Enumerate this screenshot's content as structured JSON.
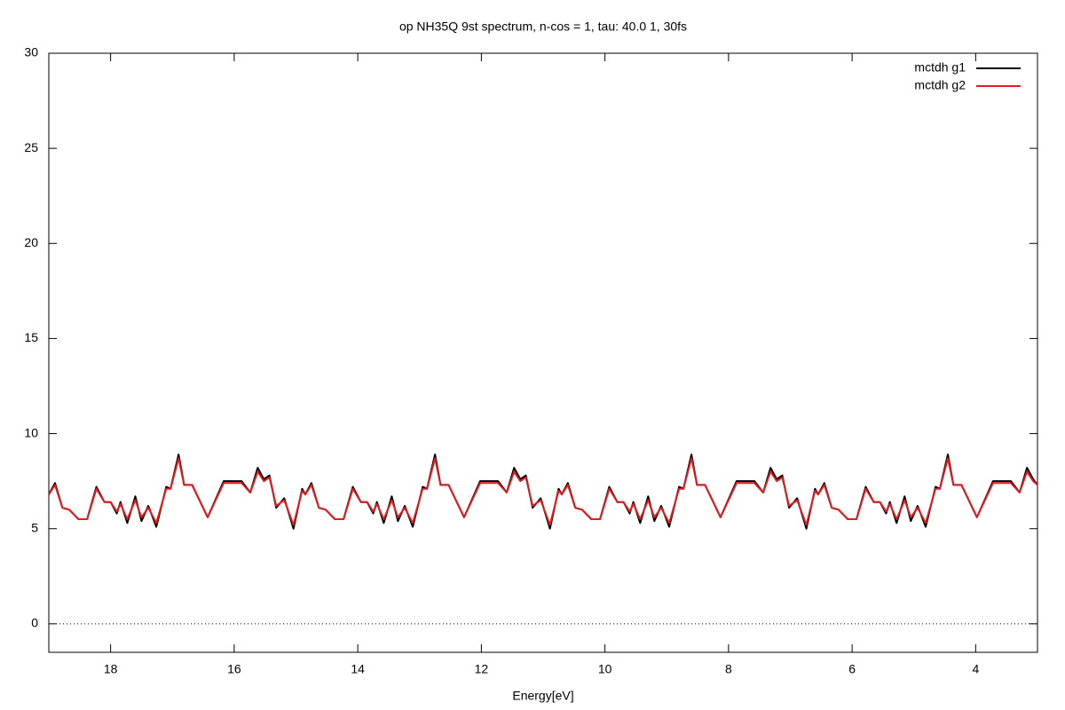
{
  "chart_data": {
    "type": "line",
    "title": "op NH35Q 9st spectrum, n-cos = 1, tau: 40.0 1, 30fs",
    "x_label": "Energy[eV]",
    "xlim": [
      19,
      3
    ],
    "ylim": [
      -1.5,
      30
    ],
    "xticks": [
      18,
      16,
      14,
      12,
      10,
      8,
      6,
      4
    ],
    "yticks": [
      0,
      5,
      10,
      15,
      20,
      25,
      30
    ],
    "zeroaxis": true,
    "legend": "top-right",
    "x": [
      19,
      18.9,
      18.78,
      18.67,
      18.52,
      18.38,
      18.23,
      18.1,
      18,
      17.9,
      17.84,
      17.73,
      17.6,
      17.5,
      17.39,
      17.26,
      17.1,
      17.03,
      16.9,
      16.81,
      16.68,
      16.43,
      16.17,
      15.88,
      15.74,
      15.62,
      15.52,
      15.43,
      15.32,
      15.19,
      15.04,
      14.9,
      14.85,
      14.75,
      14.63,
      14.52,
      14.37,
      14.23,
      14.08,
      13.95,
      13.85,
      13.75,
      13.69,
      13.58,
      13.45,
      13.35,
      13.24,
      13.11,
      12.95,
      12.88,
      12.75,
      12.66,
      12.53,
      12.28,
      12.02,
      11.73,
      11.59,
      11.47,
      11.37,
      11.28,
      11.17,
      11.04,
      10.89,
      10.75,
      10.7,
      10.6,
      10.48,
      10.37,
      10.22,
      10.08,
      9.93,
      9.8,
      9.7,
      9.6,
      9.54,
      9.43,
      9.3,
      9.2,
      9.09,
      8.96,
      8.8,
      8.73,
      8.6,
      8.51,
      8.38,
      8.13,
      7.87,
      7.58,
      7.44,
      7.32,
      7.22,
      7.13,
      7.02,
      6.89,
      6.74,
      6.6,
      6.55,
      6.45,
      6.33,
      6.22,
      6.07,
      5.93,
      5.78,
      5.65,
      5.55,
      5.45,
      5.39,
      5.28,
      5.15,
      5.05,
      4.94,
      4.81,
      4.65,
      4.58,
      4.45,
      4.36,
      4.23,
      3.98,
      3.72,
      3.43,
      3.29,
      3.17,
      3.07,
      3
    ],
    "series": [
      {
        "name": "mctdh g1",
        "color": "#000000",
        "values": [
          6.8,
          7.4,
          6.1,
          6.0,
          5.5,
          5.5,
          7.2,
          6.4,
          6.4,
          5.8,
          6.4,
          5.3,
          6.7,
          5.4,
          6.2,
          5.1,
          7.2,
          7.1,
          8.9,
          7.3,
          7.3,
          5.6,
          7.5,
          7.5,
          6.9,
          8.2,
          7.6,
          7.8,
          6.1,
          6.6,
          5.0,
          7.1,
          6.8,
          7.4,
          6.1,
          6.0,
          5.5,
          5.5,
          7.2,
          6.4,
          6.4,
          5.8,
          6.4,
          5.3,
          6.7,
          5.4,
          6.2,
          5.1,
          7.2,
          7.1,
          8.9,
          7.3,
          7.3,
          5.6,
          7.5,
          7.5,
          6.9,
          8.2,
          7.6,
          7.8,
          6.1,
          6.6,
          5.0,
          7.1,
          6.8,
          7.4,
          6.1,
          6.0,
          5.5,
          5.5,
          7.2,
          6.4,
          6.4,
          5.8,
          6.4,
          5.3,
          6.7,
          5.4,
          6.2,
          5.1,
          7.2,
          7.1,
          8.9,
          7.3,
          7.3,
          5.6,
          7.5,
          7.5,
          6.9,
          8.2,
          7.6,
          7.8,
          6.1,
          6.6,
          5.0,
          7.1,
          6.8,
          7.4,
          6.1,
          6.0,
          5.5,
          5.5,
          7.2,
          6.4,
          6.4,
          5.8,
          6.4,
          5.3,
          6.7,
          5.4,
          6.2,
          5.1,
          7.2,
          7.1,
          8.9,
          7.3,
          7.3,
          5.6,
          7.5,
          7.5,
          6.9,
          8.2,
          7.6,
          7.3
        ]
      },
      {
        "name": "mctdh g2",
        "color": "#e41a1c",
        "values": [
          6.8,
          7.3,
          6.1,
          6.0,
          5.5,
          5.5,
          7.1,
          6.4,
          6.4,
          5.9,
          6.3,
          5.5,
          6.5,
          5.6,
          6.1,
          5.3,
          7.1,
          7.1,
          8.7,
          7.3,
          7.3,
          5.6,
          7.4,
          7.4,
          6.9,
          8.0,
          7.5,
          7.7,
          6.2,
          6.5,
          5.2,
          7.0,
          6.8,
          7.3,
          6.1,
          6.0,
          5.5,
          5.5,
          7.1,
          6.4,
          6.4,
          5.9,
          6.3,
          5.5,
          6.5,
          5.6,
          6.1,
          5.3,
          7.1,
          7.1,
          8.7,
          7.3,
          7.3,
          5.6,
          7.4,
          7.4,
          6.9,
          8.0,
          7.5,
          7.7,
          6.2,
          6.5,
          5.2,
          7.0,
          6.8,
          7.3,
          6.1,
          6.0,
          5.5,
          5.5,
          7.1,
          6.4,
          6.4,
          5.9,
          6.3,
          5.5,
          6.5,
          5.6,
          6.1,
          5.3,
          7.1,
          7.1,
          8.7,
          7.3,
          7.3,
          5.6,
          7.4,
          7.4,
          6.9,
          8.0,
          7.5,
          7.7,
          6.2,
          6.5,
          5.2,
          7.0,
          6.8,
          7.3,
          6.1,
          6.0,
          5.5,
          5.5,
          7.1,
          6.4,
          6.4,
          5.9,
          6.3,
          5.5,
          6.5,
          5.6,
          6.1,
          5.3,
          7.1,
          7.1,
          8.7,
          7.3,
          7.3,
          5.6,
          7.4,
          7.4,
          6.9,
          8.0,
          7.5,
          7.3
        ]
      }
    ]
  }
}
